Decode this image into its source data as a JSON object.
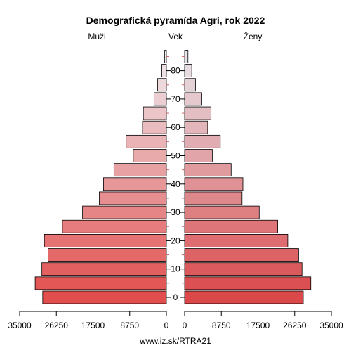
{
  "chart_data": {
    "type": "bar",
    "title": "Demografická pyramída Agri, rok 2022",
    "left_label": "Muži",
    "center_label": "Vek",
    "right_label": "Ženy",
    "source": "www.iz.sk/RTRA21",
    "age_groups": [
      "0",
      "5",
      "10",
      "15",
      "20",
      "25",
      "30",
      "35",
      "40",
      "45",
      "50",
      "55",
      "60",
      "65",
      "70",
      "75",
      "80",
      "85"
    ],
    "age_tick_labels": [
      "0",
      "10",
      "20",
      "30",
      "40",
      "50",
      "60",
      "70",
      "80"
    ],
    "male": [
      29500,
      31300,
      29700,
      28200,
      29100,
      24800,
      20000,
      16000,
      15000,
      12500,
      7900,
      9600,
      5700,
      5500,
      2950,
      2100,
      1100,
      400
    ],
    "female": [
      28300,
      30100,
      28000,
      27200,
      24600,
      22200,
      17800,
      13700,
      13900,
      11100,
      6600,
      8500,
      5500,
      6300,
      4100,
      2600,
      1700,
      800
    ],
    "x_ticks_left": [
      "35000",
      "26250",
      "17500",
      "8750",
      "0"
    ],
    "x_ticks_right": [
      "0",
      "8750",
      "17500",
      "26250",
      "35000"
    ],
    "xlim": [
      0,
      35000
    ]
  }
}
